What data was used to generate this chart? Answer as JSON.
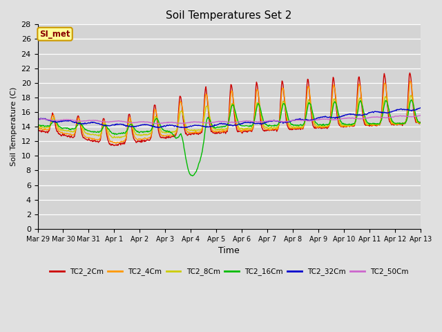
{
  "title": "Soil Temperatures Set 2",
  "xlabel": "Time",
  "ylabel": "Soil Temperature (C)",
  "ylim": [
    0,
    28
  ],
  "yticks": [
    0,
    2,
    4,
    6,
    8,
    10,
    12,
    14,
    16,
    18,
    20,
    22,
    24,
    26,
    28
  ],
  "x_tick_labels": [
    "Mar 29",
    "Mar 30",
    "Mar 31",
    "Apr 1",
    "Apr 2",
    "Apr 3",
    "Apr 4",
    "Apr 5",
    "Apr 6",
    "Apr 7",
    "Apr 8",
    "Apr 9",
    "Apr 10",
    "Apr 11",
    "Apr 12",
    "Apr 13"
  ],
  "x_tick_positions": [
    0,
    1,
    2,
    3,
    4,
    5,
    6,
    7,
    8,
    9,
    10,
    11,
    12,
    13,
    14,
    15
  ],
  "series_colors": {
    "TC2_2Cm": "#cc0000",
    "TC2_4Cm": "#ff9900",
    "TC2_8Cm": "#cccc00",
    "TC2_16Cm": "#00bb00",
    "TC2_32Cm": "#0000cc",
    "TC2_50Cm": "#cc66cc"
  },
  "background_color": "#e0e0e0",
  "plot_bg_color": "#d4d4d4",
  "annotation_text": "SI_met",
  "annotation_box_color": "#ffff99",
  "annotation_border_color": "#cc9900",
  "annotation_text_color": "#880000",
  "figwidth": 6.4,
  "figheight": 4.8,
  "dpi": 100
}
